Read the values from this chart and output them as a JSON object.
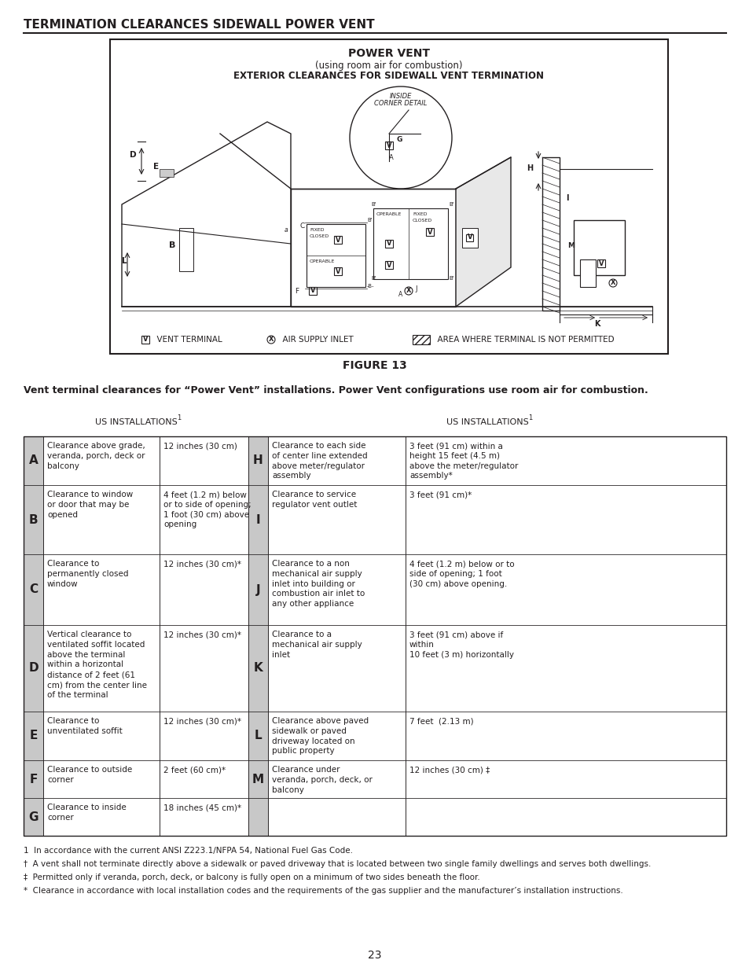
{
  "page_title": "TERMINATION CLEARANCES SIDEWALL POWER VENT",
  "figure_title": "FIGURE 13",
  "figure_caption": "Vent terminal clearances for “Power Vent” installations. Power Vent configurations use room air for combustion.",
  "diagram_title1": "POWER VENT",
  "diagram_title2": "(using room air for combustion)",
  "diagram_title3": "EXTERIOR CLEARANCES FOR SIDEWALL VENT TERMINATION",
  "table_header": "US INSTALLATIONS",
  "table_header_sup": "1",
  "rows": [
    {
      "letter": "A",
      "description": "Clearance above grade,\nveranda, porch, deck or\nbalcony",
      "value": "12 inches (30 cm)",
      "letter2": "H",
      "description2": "Clearance to each side\nof center line extended\nabove meter/regulator\nassembly",
      "value2": "3 feet (91 cm) within a\nheight 15 feet (4.5 m)\nabove the meter/regulator\nassembly*"
    },
    {
      "letter": "B",
      "description": "Clearance to window\nor door that may be\nopened",
      "value": "4 feet (1.2 m) below\nor to side of opening;\n1 foot (30 cm) above\nopening",
      "letter2": "I",
      "description2": "Clearance to service\nregulator vent outlet",
      "value2": "3 feet (91 cm)*"
    },
    {
      "letter": "C",
      "description": "Clearance to\npermanently closed\nwindow",
      "value": "12 inches (30 cm)*",
      "letter2": "J",
      "description2": "Clearance to a non\nmechanical air supply\ninlet into building or\ncombustion air inlet to\nany other appliance",
      "value2": "4 feet (1.2 m) below or to\nside of opening; 1 foot\n(30 cm) above opening."
    },
    {
      "letter": "D",
      "description": "Vertical clearance to\nventilated soffit located\nabove the terminal\nwithin a horizontal\ndistance of 2 feet (61\ncm) from the center line\nof the terminal",
      "value": "12 inches (30 cm)*",
      "letter2": "K",
      "description2": "Clearance to a\nmechanical air supply\ninlet",
      "value2": "3 feet (91 cm) above if\nwithin\n10 feet (3 m) horizontally"
    },
    {
      "letter": "E",
      "description": "Clearance to\nunventilated soffit",
      "value": "12 inches (30 cm)*",
      "letter2": "L",
      "description2": "Clearance above paved\nsidewalk or paved\ndriveway located on\npublic property",
      "value2": "7 feet  (2.13 m)"
    },
    {
      "letter": "F",
      "description": "Clearance to outside\ncorner",
      "value": "2 feet (60 cm)*",
      "letter2": "M",
      "description2": "Clearance under\nveranda, porch, deck, or\nbalcony",
      "value2": "12 inches (30 cm) ‡"
    },
    {
      "letter": "G",
      "description": "Clearance to inside\ncorner",
      "value": "18 inches (45 cm)*",
      "letter2": "",
      "description2": "",
      "value2": ""
    }
  ],
  "footnotes": [
    "1  In accordance with the current ANSI Z223.1/NFPA 54, National Fuel Gas Code.",
    "†  A vent shall not terminate directly above a sidewalk or paved driveway that is located between two single family dwellings and serves both dwellings.",
    "‡  Permitted only if veranda, porch, deck, or balcony is fully open on a minimum of two sides beneath the floor.",
    "*  Clearance in accordance with local installation codes and the requirements of the gas supplier and the manufacturer’s installation instructions."
  ],
  "page_number": "23",
  "bg_color": "#ffffff",
  "text_color": "#231f20",
  "table_letter_bg": "#c8c8c8"
}
